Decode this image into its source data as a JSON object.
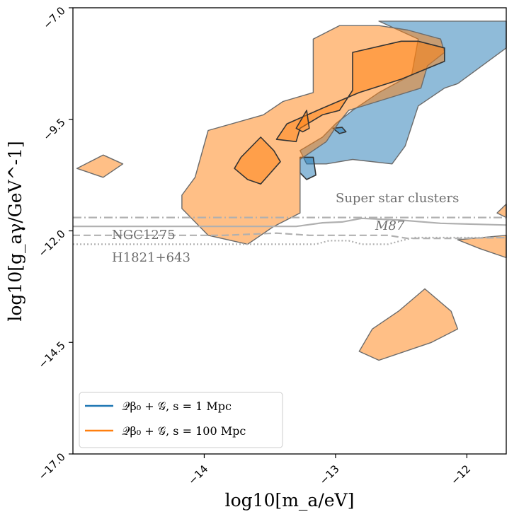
{
  "chart_data": {
    "type": "area",
    "xlabel": "log10[m_a/eV]",
    "ylabel": "log10[g_aγ/GeV^-1]",
    "xlim": [
      -15.0,
      -11.7
    ],
    "ylim": [
      -17.0,
      -7.0
    ],
    "xticks": [
      -14,
      -13,
      -12
    ],
    "yticks": [
      -7.0,
      -9.5,
      -12.0,
      -14.5,
      -17.0
    ],
    "tick_labels": {
      "x": [
        "−14",
        "−13",
        "−12"
      ],
      "y": [
        "−7.0",
        "−9.5",
        "−12.0",
        "−14.5",
        "−17.0"
      ]
    },
    "grid": false,
    "legend_position": "lower-left",
    "series": [
      {
        "name": "Q_β0 + G, s = 1 Mpc",
        "legend_label": "𝒬β₀ + 𝒢, s = 1 Mpc",
        "color": "#1f77b4",
        "regions": [
          {
            "level": "outer",
            "polygon": [
              [
                -12.67,
                -7.3
              ],
              [
                -11.7,
                -7.3
              ],
              [
                -11.7,
                -7.9
              ],
              [
                -12.07,
                -8.7
              ],
              [
                -12.17,
                -8.8
              ],
              [
                -12.37,
                -9.2
              ],
              [
                -12.47,
                -10.1
              ],
              [
                -12.57,
                -10.5
              ],
              [
                -12.87,
                -10.4
              ],
              [
                -13.07,
                -10.5
              ],
              [
                -13.22,
                -10.5
              ],
              [
                -13.27,
                -10.2
              ],
              [
                -13.1,
                -9.9
              ],
              [
                -13.0,
                -9.6
              ],
              [
                -12.87,
                -9.3
              ],
              [
                -12.67,
                -8.9
              ],
              [
                -12.42,
                -8.5
              ],
              [
                -12.37,
                -7.7
              ]
            ]
          },
          {
            "level": "inner",
            "polygon": [
              [
                -13.17,
                -10.35
              ],
              [
                -13.27,
                -10.35
              ],
              [
                -13.27,
                -10.7
              ],
              [
                -13.22,
                -10.85
              ],
              [
                -13.15,
                -10.75
              ]
            ]
          },
          {
            "level": "inner",
            "polygon": [
              [
                -13.02,
                -9.7
              ],
              [
                -12.95,
                -9.68
              ],
              [
                -12.92,
                -9.78
              ],
              [
                -12.97,
                -9.82
              ]
            ]
          }
        ]
      },
      {
        "name": "Q_β0 + G, s = 100 Mpc",
        "legend_label": "𝒬β₀ + 𝒢, s = 100 Mpc",
        "color": "#ff7f0e",
        "regions": [
          {
            "level": "outer",
            "polygon": [
              [
                -13.17,
                -7.7
              ],
              [
                -12.97,
                -7.4
              ],
              [
                -12.67,
                -7.4
              ],
              [
                -12.45,
                -7.5
              ],
              [
                -12.2,
                -7.7
              ],
              [
                -12.17,
                -8.0
              ],
              [
                -12.3,
                -8.3
              ],
              [
                -12.35,
                -8.8
              ],
              [
                -12.9,
                -9.3
              ],
              [
                -12.97,
                -9.55
              ],
              [
                -13.07,
                -10.0
              ],
              [
                -13.27,
                -10.4
              ],
              [
                -13.27,
                -11.6
              ],
              [
                -13.47,
                -11.9
              ],
              [
                -13.67,
                -12.3
              ],
              [
                -13.97,
                -12.1
              ],
              [
                -14.17,
                -11.5
              ],
              [
                -14.17,
                -11.2
              ],
              [
                -14.07,
                -10.8
              ],
              [
                -13.97,
                -9.75
              ],
              [
                -13.55,
                -9.4
              ],
              [
                -13.4,
                -9.1
              ],
              [
                -13.17,
                -8.9
              ]
            ]
          },
          {
            "level": "inner",
            "polygon": [
              [
                -12.87,
                -8.0
              ],
              [
                -12.5,
                -7.75
              ],
              [
                -12.37,
                -7.75
              ],
              [
                -12.17,
                -7.9
              ],
              [
                -12.17,
                -8.2
              ],
              [
                -12.5,
                -8.6
              ],
              [
                -12.82,
                -8.9
              ],
              [
                -13.1,
                -9.25
              ],
              [
                -13.37,
                -9.6
              ],
              [
                -13.45,
                -9.95
              ],
              [
                -13.3,
                -10.0
              ],
              [
                -13.27,
                -9.7
              ],
              [
                -13.1,
                -9.4
              ],
              [
                -12.97,
                -9.3
              ],
              [
                -12.87,
                -8.85
              ],
              [
                -12.87,
                -8.3
              ]
            ]
          },
          {
            "level": "inner",
            "polygon": [
              [
                -13.57,
                -9.9
              ],
              [
                -13.47,
                -10.2
              ],
              [
                -13.42,
                -10.45
              ],
              [
                -13.57,
                -10.95
              ],
              [
                -13.67,
                -10.85
              ],
              [
                -13.77,
                -10.6
              ],
              [
                -13.72,
                -10.35
              ]
            ]
          },
          {
            "level": "inner",
            "polygon": [
              [
                -13.3,
                -9.7
              ],
              [
                -13.22,
                -9.3
              ],
              [
                -13.2,
                -9.7
              ],
              [
                -13.25,
                -9.78
              ]
            ]
          },
          {
            "level": "outer",
            "polygon": [
              [
                -14.77,
                -10.3
              ],
              [
                -14.62,
                -10.5
              ],
              [
                -14.77,
                -10.8
              ],
              [
                -14.97,
                -10.6
              ]
            ]
          },
          {
            "level": "outer",
            "polygon": [
              [
                -11.7,
                -11.4
              ],
              [
                -11.77,
                -11.6
              ],
              [
                -11.7,
                -11.7
              ]
            ]
          },
          {
            "level": "outer",
            "polygon": [
              [
                -11.7,
                -12.1
              ],
              [
                -12.07,
                -12.2
              ],
              [
                -11.9,
                -12.4
              ],
              [
                -11.7,
                -12.6
              ]
            ]
          },
          {
            "level": "outer",
            "polygon": [
              [
                -12.32,
                -13.3
              ],
              [
                -12.52,
                -13.8
              ],
              [
                -12.72,
                -14.2
              ],
              [
                -12.82,
                -14.7
              ],
              [
                -12.67,
                -14.9
              ],
              [
                -12.27,
                -14.5
              ],
              [
                -12.07,
                -14.2
              ],
              [
                -12.12,
                -13.8
              ]
            ]
          }
        ]
      }
    ],
    "reference_lines": [
      {
        "label": "Super star clusters",
        "style": "dashdot",
        "points": [
          [
            -15.0,
            -11.7
          ],
          [
            -11.7,
            -11.7
          ]
        ]
      },
      {
        "label": "M87",
        "style": "solid",
        "points": [
          [
            -15.0,
            -11.9
          ],
          [
            -13.3,
            -11.9
          ],
          [
            -13.1,
            -11.82
          ],
          [
            -12.95,
            -11.8
          ],
          [
            -12.8,
            -11.72
          ],
          [
            -12.5,
            -11.76
          ],
          [
            -12.2,
            -11.83
          ],
          [
            -11.7,
            -11.87
          ]
        ]
      },
      {
        "label": "NGC1275",
        "style": "dashed",
        "points": [
          [
            -15.0,
            -12.1
          ],
          [
            -13.85,
            -12.1
          ],
          [
            -13.45,
            -12.05
          ],
          [
            -13.2,
            -12.1
          ],
          [
            -12.6,
            -12.1
          ],
          [
            -12.45,
            -12.17
          ],
          [
            -12.1,
            -12.17
          ],
          [
            -11.7,
            -12.15
          ]
        ]
      },
      {
        "label": "H1821+643",
        "style": "dotted",
        "points": [
          [
            -15.0,
            -12.3
          ],
          [
            -13.15,
            -12.3
          ],
          [
            -13.05,
            -12.22
          ],
          [
            -12.9,
            -12.22
          ],
          [
            -12.8,
            -12.3
          ],
          [
            -12.6,
            -12.3
          ],
          [
            -12.5,
            -12.22
          ],
          [
            -12.4,
            -12.15
          ],
          [
            -12.1,
            -12.15
          ],
          [
            -11.7,
            -12.15
          ]
        ]
      }
    ],
    "annotations": {
      "super_star_clusters": "Super star clusters",
      "m87": "M87",
      "ngc1275": "NGC1275",
      "h1821": "H1821+643"
    },
    "colors": {
      "outer_alpha": 0.5,
      "inner_alpha": 0.5,
      "reference_line": "#b0b0b0",
      "annotation_text": "#6e6e6e"
    }
  }
}
